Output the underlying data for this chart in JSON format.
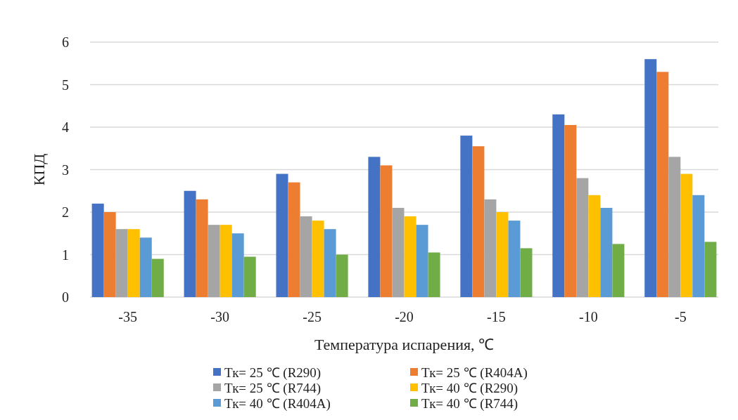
{
  "chart_data": {
    "type": "bar",
    "xlabel": "Температура испарения, ℃",
    "ylabel": "КПД",
    "categories": [
      "-35",
      "-30",
      "-25",
      "-20",
      "-15",
      "-10",
      "-5"
    ],
    "series": [
      {
        "name": "Тк= 25 ℃ (R290)",
        "color": "#4472c4",
        "values": [
          2.2,
          2.5,
          2.9,
          3.3,
          3.8,
          4.3,
          5.6
        ]
      },
      {
        "name": "Тк= 25 ℃ (R404A)",
        "color": "#ed7d31",
        "values": [
          2.0,
          2.3,
          2.7,
          3.1,
          3.55,
          4.05,
          5.3
        ]
      },
      {
        "name": "Тк= 25 ℃ (R744)",
        "color": "#a5a5a5",
        "values": [
          1.6,
          1.7,
          1.9,
          2.1,
          2.3,
          2.8,
          3.3
        ]
      },
      {
        "name": "Тк= 40 ℃ (R290)",
        "color": "#ffc000",
        "values": [
          1.6,
          1.7,
          1.8,
          1.9,
          2.0,
          2.4,
          2.9
        ]
      },
      {
        "name": "Тк= 40 ℃ (R404A)",
        "color": "#5b9bd5",
        "values": [
          1.4,
          1.5,
          1.6,
          1.7,
          1.8,
          2.1,
          2.4
        ]
      },
      {
        "name": "Тк= 40 ℃ (R744)",
        "color": "#70ad47",
        "values": [
          0.9,
          0.95,
          1.0,
          1.05,
          1.15,
          1.25,
          1.3
        ]
      }
    ],
    "ylim": [
      0,
      6
    ],
    "yticks": [
      0,
      1,
      2,
      3,
      4,
      5,
      6
    ],
    "grid": "y",
    "legend": "bottom"
  }
}
